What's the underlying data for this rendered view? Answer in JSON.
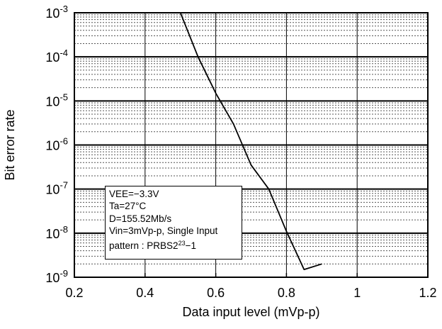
{
  "chart_data": {
    "type": "line",
    "xlabel": "Data input level  (mVp-p)",
    "ylabel": "Bit error rate",
    "x_ticks": [
      "0.2",
      "0.4",
      "0.6",
      "0.8",
      "1",
      "1.2"
    ],
    "xlim": [
      0.2,
      1.2
    ],
    "y_scale": "log",
    "ylim": [
      1e-09,
      0.001
    ],
    "y_ticks": [
      {
        "base": "10",
        "exp": "-3"
      },
      {
        "base": "10",
        "exp": "-4"
      },
      {
        "base": "10",
        "exp": "-5"
      },
      {
        "base": "10",
        "exp": "-6"
      },
      {
        "base": "10",
        "exp": "-7"
      },
      {
        "base": "10",
        "exp": "-8"
      },
      {
        "base": "10",
        "exp": "-9"
      }
    ],
    "grid": true,
    "series": [
      {
        "x": [
          0.5,
          0.55,
          0.6,
          0.65,
          0.7,
          0.75,
          0.8,
          0.85,
          0.9
        ],
        "y": [
          0.001,
          0.0001,
          1.5e-05,
          3e-06,
          3.5e-07,
          1e-07,
          1.1e-08,
          1.5e-09,
          2e-09
        ]
      }
    ],
    "annotation": {
      "lines": [
        {
          "text": "VEE=−3.3V"
        },
        {
          "text": "Ta=27°C"
        },
        {
          "text": "D=155.52Mb/s"
        },
        {
          "text": "Vin=3mVp-p, Single Input"
        },
        {
          "text": "pattern : PRBS2",
          "sup": "23",
          "tail": "−1"
        }
      ]
    }
  }
}
